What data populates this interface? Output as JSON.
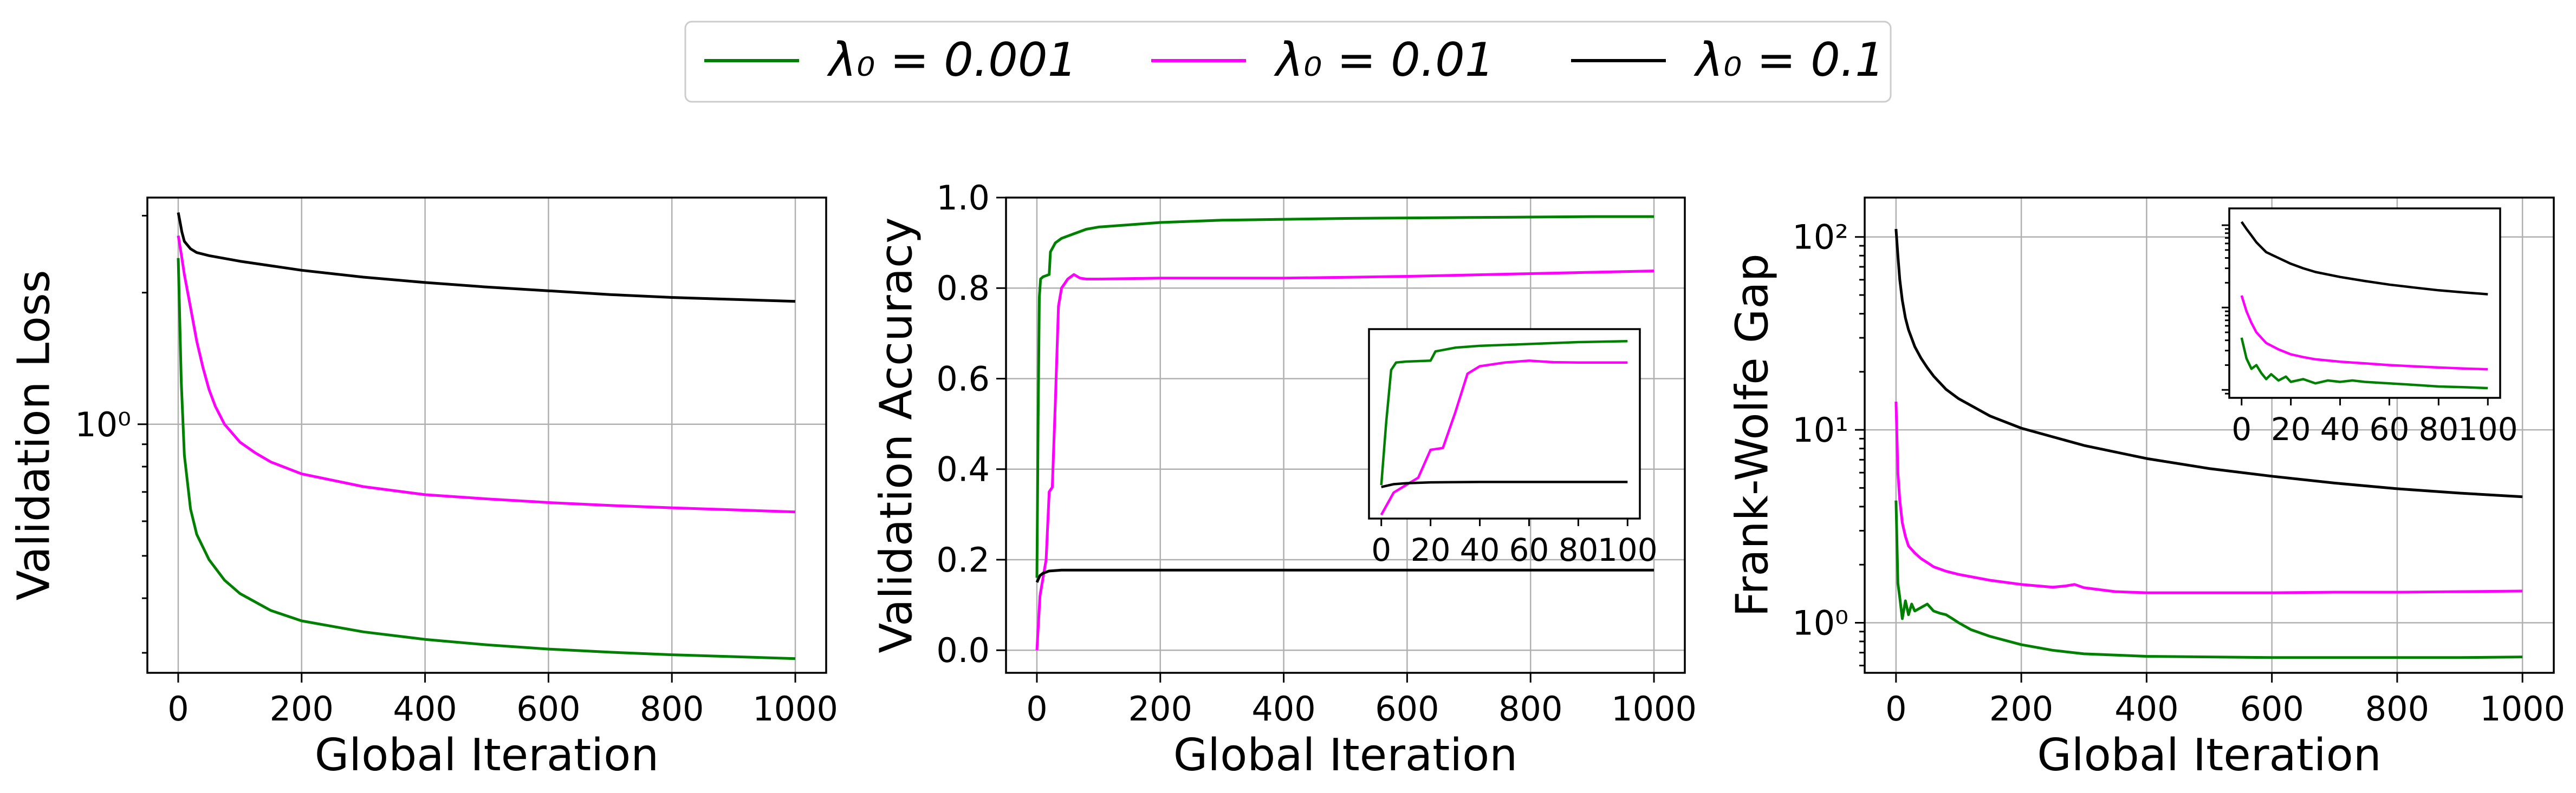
{
  "legend": [
    {
      "key": "s0",
      "label": "λ₀ = 0.001",
      "color": "#008000"
    },
    {
      "key": "s1",
      "label": "λ₀ = 0.01",
      "color": "#ff00ff"
    },
    {
      "key": "s2",
      "label": "λ₀ = 0.1",
      "color": "#000000"
    }
  ],
  "chart_data": [
    {
      "type": "line",
      "xlabel": "Global Iteration",
      "ylabel": "Validation Loss",
      "xlim": [
        -50,
        1050
      ],
      "ylim": [
        0.27,
        3.3
      ],
      "yscale": "log",
      "xticks": [
        0,
        200,
        400,
        600,
        800,
        1000
      ],
      "xtick_labels": [
        "0",
        "200",
        "400",
        "600",
        "800",
        "1000"
      ],
      "yticks": [
        1
      ],
      "ytick_labels": [
        "10⁰"
      ],
      "grid": true,
      "series": [
        {
          "key": "s0",
          "x": [
            0,
            5,
            10,
            20,
            30,
            50,
            75,
            100,
            150,
            200,
            300,
            400,
            500,
            600,
            700,
            800,
            900,
            1000
          ],
          "y": [
            2.4,
            1.25,
            0.85,
            0.64,
            0.56,
            0.49,
            0.44,
            0.41,
            0.375,
            0.355,
            0.335,
            0.322,
            0.313,
            0.306,
            0.301,
            0.297,
            0.294,
            0.291
          ]
        },
        {
          "key": "s1",
          "x": [
            0,
            5,
            10,
            20,
            30,
            40,
            50,
            60,
            75,
            100,
            125,
            150,
            200,
            300,
            400,
            500,
            600,
            700,
            800,
            900,
            1000
          ],
          "y": [
            2.7,
            2.45,
            2.2,
            1.85,
            1.55,
            1.35,
            1.2,
            1.1,
            1.0,
            0.91,
            0.86,
            0.82,
            0.77,
            0.72,
            0.69,
            0.675,
            0.662,
            0.652,
            0.644,
            0.637,
            0.63
          ]
        },
        {
          "key": "s2",
          "x": [
            0,
            3,
            6,
            10,
            20,
            30,
            50,
            100,
            200,
            300,
            400,
            500,
            600,
            700,
            800,
            900,
            1000
          ],
          "y": [
            3.05,
            2.9,
            2.75,
            2.62,
            2.52,
            2.47,
            2.43,
            2.36,
            2.25,
            2.17,
            2.11,
            2.06,
            2.02,
            1.98,
            1.95,
            1.93,
            1.91
          ]
        }
      ]
    },
    {
      "type": "line",
      "xlabel": "Global Iteration",
      "ylabel": "Validation Accuracy",
      "xlim": [
        -50,
        1050
      ],
      "ylim": [
        -0.05,
        1.0
      ],
      "yscale": "linear",
      "xticks": [
        0,
        200,
        400,
        600,
        800,
        1000
      ],
      "xtick_labels": [
        "0",
        "200",
        "400",
        "600",
        "800",
        "1000"
      ],
      "yticks": [
        0,
        0.2,
        0.4,
        0.6,
        0.8,
        1.0
      ],
      "ytick_labels": [
        "0.0",
        "0.2",
        "0.4",
        "0.6",
        "0.8",
        "1.0"
      ],
      "grid": true,
      "series": [
        {
          "key": "s0",
          "x": [
            0,
            2,
            4,
            6,
            10,
            20,
            22,
            30,
            40,
            60,
            80,
            100,
            150,
            200,
            300,
            400,
            500,
            600,
            700,
            800,
            900,
            1000
          ],
          "y": [
            0.16,
            0.5,
            0.78,
            0.82,
            0.825,
            0.83,
            0.88,
            0.9,
            0.91,
            0.92,
            0.93,
            0.935,
            0.94,
            0.945,
            0.95,
            0.952,
            0.954,
            0.955,
            0.956,
            0.957,
            0.958,
            0.958
          ]
        },
        {
          "key": "s1",
          "x": [
            0,
            5,
            10,
            15,
            20,
            25,
            30,
            35,
            40,
            45,
            50,
            55,
            60,
            65,
            70,
            80,
            90,
            100,
            200,
            300,
            400,
            500,
            600,
            700,
            800,
            900,
            1000
          ],
          "y": [
            0.0,
            0.12,
            0.16,
            0.2,
            0.35,
            0.36,
            0.55,
            0.76,
            0.8,
            0.81,
            0.82,
            0.825,
            0.83,
            0.826,
            0.822,
            0.82,
            0.82,
            0.82,
            0.822,
            0.822,
            0.822,
            0.824,
            0.826,
            0.829,
            0.832,
            0.835,
            0.838
          ]
        },
        {
          "key": "s2",
          "x": [
            0,
            5,
            10,
            20,
            40,
            60,
            100,
            200,
            400,
            600,
            800,
            1000
          ],
          "y": [
            0.15,
            0.165,
            0.17,
            0.175,
            0.177,
            0.177,
            0.177,
            0.177,
            0.177,
            0.177,
            0.177,
            0.177
          ]
        }
      ],
      "inset": {
        "xlim": [
          -5,
          105
        ],
        "ylim": [
          -0.02,
          1.0
        ],
        "xticks": [
          0,
          20,
          40,
          60,
          80,
          100
        ],
        "xtick_labels": [
          "0",
          "20",
          "40",
          "60",
          "80",
          "100"
        ],
        "series": [
          {
            "key": "s0",
            "x": [
              0,
              2,
              4,
              6,
              10,
              20,
              22,
              30,
              40,
              60,
              80,
              100
            ],
            "y": [
              0.16,
              0.5,
              0.78,
              0.82,
              0.825,
              0.83,
              0.88,
              0.9,
              0.91,
              0.92,
              0.93,
              0.935
            ]
          },
          {
            "key": "s1",
            "x": [
              0,
              5,
              10,
              15,
              20,
              25,
              30,
              35,
              40,
              45,
              50,
              55,
              60,
              65,
              70,
              80,
              90,
              100
            ],
            "y": [
              0.0,
              0.12,
              0.16,
              0.2,
              0.35,
              0.36,
              0.55,
              0.76,
              0.8,
              0.81,
              0.82,
              0.825,
              0.83,
              0.826,
              0.822,
              0.82,
              0.82,
              0.82
            ]
          },
          {
            "key": "s2",
            "x": [
              0,
              5,
              10,
              20,
              40,
              60,
              80,
              100
            ],
            "y": [
              0.15,
              0.165,
              0.17,
              0.175,
              0.177,
              0.177,
              0.177,
              0.177
            ]
          }
        ]
      }
    },
    {
      "type": "line",
      "xlabel": "Global Iteration",
      "ylabel": "Frank-Wolfe Gap",
      "xlim": [
        -50,
        1050
      ],
      "ylim": [
        0.55,
        160
      ],
      "yscale": "log",
      "xticks": [
        0,
        200,
        400,
        600,
        800,
        1000
      ],
      "xtick_labels": [
        "0",
        "200",
        "400",
        "600",
        "800",
        "1000"
      ],
      "yticks": [
        1,
        10,
        100
      ],
      "ytick_labels": [
        "10⁰",
        "10¹",
        "10²"
      ],
      "grid": true,
      "series": [
        {
          "key": "s0",
          "x": [
            0,
            3,
            6,
            10,
            15,
            20,
            25,
            30,
            40,
            50,
            60,
            70,
            80,
            90,
            100,
            120,
            150,
            200,
            250,
            300,
            400,
            500,
            600,
            700,
            800,
            900,
            1000
          ],
          "y": [
            4.3,
            1.6,
            1.35,
            1.05,
            1.3,
            1.1,
            1.25,
            1.15,
            1.2,
            1.25,
            1.15,
            1.12,
            1.1,
            1.05,
            1.0,
            0.92,
            0.85,
            0.77,
            0.72,
            0.69,
            0.67,
            0.665,
            0.66,
            0.66,
            0.66,
            0.66,
            0.665
          ]
        },
        {
          "key": "s1",
          "x": [
            0,
            3,
            6,
            10,
            15,
            20,
            30,
            40,
            50,
            60,
            80,
            100,
            150,
            200,
            250,
            270,
            285,
            300,
            350,
            400,
            500,
            600,
            700,
            800,
            900,
            1000
          ],
          "y": [
            14,
            6.0,
            4.3,
            3.3,
            2.8,
            2.5,
            2.3,
            2.15,
            2.05,
            1.95,
            1.85,
            1.78,
            1.66,
            1.58,
            1.53,
            1.55,
            1.58,
            1.52,
            1.45,
            1.43,
            1.43,
            1.43,
            1.44,
            1.44,
            1.45,
            1.46
          ]
        },
        {
          "key": "s2",
          "x": [
            0,
            3,
            6,
            10,
            15,
            20,
            30,
            40,
            50,
            60,
            80,
            100,
            150,
            200,
            300,
            400,
            500,
            600,
            700,
            800,
            900,
            1000
          ],
          "y": [
            110,
            80,
            60,
            47,
            38,
            33,
            27,
            23.5,
            21,
            19,
            16.2,
            14.5,
            11.8,
            10.2,
            8.3,
            7.1,
            6.3,
            5.75,
            5.3,
            4.95,
            4.7,
            4.5
          ]
        }
      ],
      "inset": {
        "xlim": [
          -5,
          105
        ],
        "ylim": [
          0.8,
          160
        ],
        "yscale": "log",
        "xticks": [
          0,
          20,
          40,
          60,
          80,
          100
        ],
        "xtick_labels": [
          "0",
          "20",
          "40",
          "60",
          "80",
          "100"
        ],
        "series": [
          {
            "key": "s0",
            "x": [
              0,
              2,
              4,
              6,
              8,
              10,
              12,
              15,
              18,
              20,
              25,
              30,
              35,
              40,
              45,
              50,
              60,
              70,
              80,
              90,
              100
            ],
            "y": [
              4.3,
              2.4,
              1.8,
              2.0,
              1.6,
              1.35,
              1.55,
              1.3,
              1.45,
              1.25,
              1.35,
              1.2,
              1.3,
              1.25,
              1.3,
              1.25,
              1.2,
              1.15,
              1.1,
              1.08,
              1.05
            ]
          },
          {
            "key": "s1",
            "x": [
              0,
              2,
              4,
              6,
              8,
              10,
              15,
              20,
              25,
              30,
              40,
              50,
              60,
              70,
              80,
              90,
              100
            ],
            "y": [
              14,
              9,
              6.5,
              5.0,
              4.3,
              3.7,
              3.1,
              2.7,
              2.5,
              2.35,
              2.2,
              2.1,
              2.0,
              1.93,
              1.87,
              1.82,
              1.78
            ]
          },
          {
            "key": "s2",
            "x": [
              0,
              2,
              4,
              6,
              8,
              10,
              15,
              20,
              25,
              30,
              40,
              50,
              60,
              70,
              80,
              90,
              100
            ],
            "y": [
              110,
              90,
              75,
              62,
              54,
              47,
              40,
              34,
              30,
              27,
              23.5,
              21,
              19,
              17.5,
              16.2,
              15.3,
              14.5
            ]
          }
        ]
      }
    }
  ]
}
